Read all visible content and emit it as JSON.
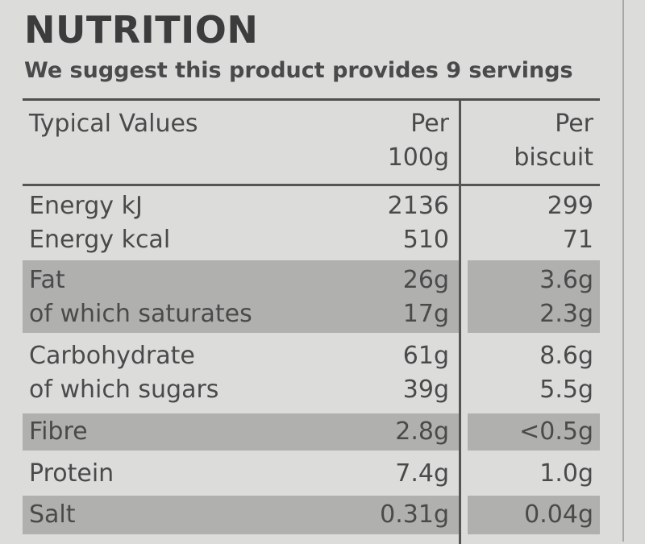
{
  "title": "NUTRITION",
  "subtitle": "We suggest this product provides 9 servings",
  "header": {
    "label": "Typical Values",
    "col1": [
      "Per",
      "100g"
    ],
    "col2": [
      "Per",
      "biscuit"
    ]
  },
  "rows": [
    {
      "labels": [
        "Energy kJ",
        "Energy kcal"
      ],
      "per100g": [
        "2136",
        "510"
      ],
      "perBiscuit": [
        "299",
        "71"
      ],
      "shaded": false
    },
    {
      "labels": [
        "Fat",
        "of which saturates"
      ],
      "per100g": [
        "26g",
        "17g"
      ],
      "perBiscuit": [
        "3.6g",
        "2.3g"
      ],
      "shaded": true
    },
    {
      "labels": [
        "Carbohydrate",
        "of which sugars"
      ],
      "per100g": [
        "61g",
        "39g"
      ],
      "perBiscuit": [
        "8.6g",
        "5.5g"
      ],
      "shaded": false
    },
    {
      "labels": [
        "Fibre"
      ],
      "per100g": [
        "2.8g"
      ],
      "perBiscuit": [
        "<0.5g"
      ],
      "shaded": true
    },
    {
      "labels": [
        "Protein"
      ],
      "per100g": [
        "7.4g"
      ],
      "perBiscuit": [
        "1.0g"
      ],
      "shaded": false
    },
    {
      "labels": [
        "Salt"
      ],
      "per100g": [
        "0.31g"
      ],
      "perBiscuit": [
        "0.04g"
      ],
      "shaded": true
    }
  ],
  "colors": {
    "background": "#dcdcdb",
    "shade": "#b0b0ae",
    "text": "#4a4a4a",
    "rule": "#555555"
  }
}
